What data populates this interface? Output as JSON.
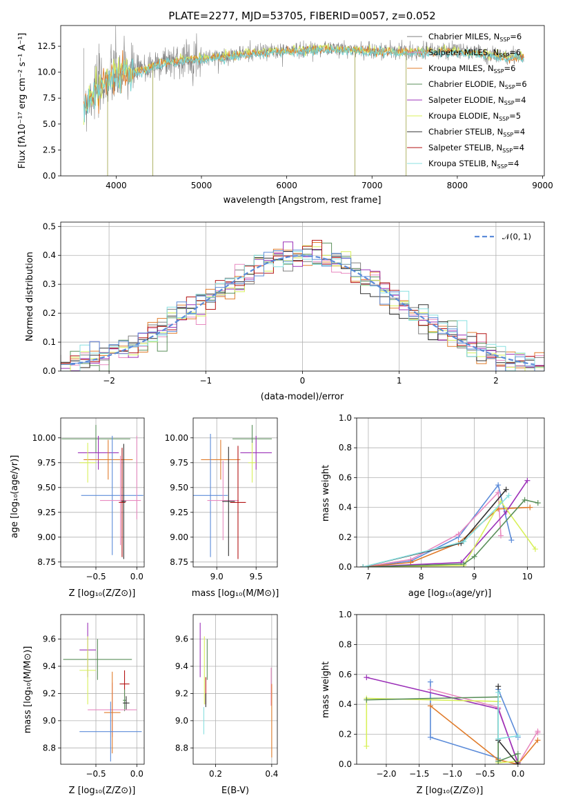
{
  "colors": {
    "chabrier_miles": "#7f7f7f",
    "salpeter_miles": "#76d2d2",
    "kroupa_miles": "#e07b2a",
    "chabrier_elodie": "#5a8f5a",
    "salpeter_elodie": "#9b30b8",
    "kroupa_elodie": "#d8f05a",
    "chabrier_stelib": "#303030",
    "salpeter_stelib": "#b31212",
    "kroupa_stelib": "#88e0e0",
    "blue": "#5b8bd9",
    "pink": "#e889c0"
  },
  "chart_data": [
    {
      "id": "spectrum",
      "type": "line",
      "title": "PLATE=2277, MJD=53705, FIBERID=0057, z=0.052",
      "xlabel": "wavelength [Angstrom, rest frame]",
      "ylabel": "Flux [fλ10⁻¹⁷ erg cm⁻² s⁻¹ A⁻¹]",
      "xlim": [
        3350,
        9020
      ],
      "ylim": [
        0,
        14.5
      ],
      "xticks": [
        "4000",
        "5000",
        "6000",
        "7000",
        "8000",
        "9000"
      ],
      "yticks": [
        "0.0",
        "2.5",
        "5.0",
        "7.5",
        "10.0",
        "12.5"
      ],
      "legend_position": "right",
      "legend": [
        {
          "name": "Chabrier MILES, N",
          "sub": "SSP",
          "val": "=6",
          "color": "#7f7f7f"
        },
        {
          "name": "Salpeter MILES, N",
          "sub": "SSP",
          "val": "=6",
          "color": "#e889c0"
        },
        {
          "name": "Kroupa MILES, N",
          "sub": "SSP",
          "val": "=6",
          "color": "#e07b2a"
        },
        {
          "name": "Chabrier ELODIE, N",
          "sub": "SSP",
          "val": "=6",
          "color": "#5a8f5a"
        },
        {
          "name": "Salpeter ELODIE, N",
          "sub": "SSP",
          "val": "=4",
          "color": "#9b30b8"
        },
        {
          "name": "Kroupa ELODIE, N",
          "sub": "SSP",
          "val": "=5",
          "color": "#d8f05a"
        },
        {
          "name": "Chabrier STELIB, N",
          "sub": "SSP",
          "val": "=4",
          "color": "#303030"
        },
        {
          "name": "Salpeter STELIB, N",
          "sub": "SSP",
          "val": "=4",
          "color": "#b31212"
        },
        {
          "name": "Kroupa STELIB, N",
          "sub": "SSP",
          "val": "=4",
          "color": "#88e0e0"
        }
      ],
      "trend": [
        [
          3600,
          6.5
        ],
        [
          3700,
          7.8
        ],
        [
          3800,
          8.6
        ],
        [
          3950,
          9.6
        ],
        [
          4100,
          10.0
        ],
        [
          4300,
          10.2
        ],
        [
          4500,
          10.9
        ],
        [
          4800,
          11.3
        ],
        [
          5200,
          11.5
        ],
        [
          5600,
          11.9
        ],
        [
          6000,
          12.1
        ],
        [
          6500,
          12.3
        ],
        [
          7000,
          12.1
        ],
        [
          7500,
          12.0
        ],
        [
          8000,
          12.1
        ],
        [
          8500,
          11.6
        ],
        [
          8800,
          11.5
        ]
      ],
      "drops": [
        [
          3900,
          0
        ],
        [
          4430,
          0
        ],
        [
          6800,
          0
        ],
        [
          7400,
          0
        ]
      ]
    },
    {
      "id": "residuals",
      "type": "bar",
      "xlabel": "(data-model)/error",
      "ylabel": "Normed distribution",
      "xlim": [
        -2.5,
        2.5
      ],
      "ylim": [
        0,
        0.515
      ],
      "xticks": [
        "−2",
        "−1",
        "0",
        "1",
        "2"
      ],
      "yticks": [
        "0.0",
        "0.1",
        "0.2",
        "0.3",
        "0.4",
        "0.5"
      ],
      "bin_width": 0.1,
      "legend": "𝒩(0, 1)",
      "legend_position": "top-right"
    },
    {
      "id": "age_vs_Z",
      "type": "scatter",
      "xlabel": "Z [log₁₀(Z/Z⊙)]",
      "ylabel": "age  [log₁₀(age/yr)]",
      "xlim": [
        -0.93,
        0.09
      ],
      "ylim": [
        8.7,
        10.2
      ],
      "xticks": [
        "−0.5",
        "0.0"
      ],
      "yticks": [
        "8.75",
        "9.00",
        "9.25",
        "9.50",
        "9.75",
        "10.00"
      ],
      "points": [
        {
          "x": -0.5,
          "y": 9.99,
          "xerr": 0.42,
          "yerr": 0.14,
          "color": "#5a8f5a"
        },
        {
          "x": -0.47,
          "y": 9.85,
          "xerr": 0.25,
          "yerr": 0.17,
          "color": "#9b30b8"
        },
        {
          "x": -0.35,
          "y": 9.78,
          "xerr": 0.3,
          "yerr": 0.2,
          "color": "#e07b2a"
        },
        {
          "x": -0.6,
          "y": 9.75,
          "xerr": 0.1,
          "yerr": 0.2,
          "color": "#d8f05a"
        },
        {
          "x": -0.3,
          "y": 9.42,
          "xerr": 0.38,
          "yerr": 0.6,
          "color": "#5b8bd9"
        },
        {
          "x": -0.2,
          "y": 9.37,
          "xerr": 0.25,
          "yerr": 0.45,
          "color": "#e889c0"
        },
        {
          "x": -0.18,
          "y": 9.35,
          "xerr": 0.04,
          "yerr": 0.55,
          "color": "#b31212"
        },
        {
          "x": -0.16,
          "y": 9.36,
          "xerr": 0.03,
          "yerr": 0.58,
          "color": "#303030"
        },
        {
          "x": 0.0,
          "y": 9.6,
          "xerr": 0.0,
          "yerr": 0.42,
          "color": "#e889c0"
        }
      ]
    },
    {
      "id": "age_vs_mass",
      "type": "scatter",
      "xlabel": "mass [log₁₀(M/M⊙)]",
      "xlim": [
        8.7,
        9.77
      ],
      "ylim": [
        8.7,
        10.2
      ],
      "xticks": [
        "9.0",
        "9.5"
      ],
      "yticks": [
        "8.75",
        "9.00",
        "9.25",
        "9.50",
        "9.75",
        "10.00"
      ],
      "points": [
        {
          "x": 9.45,
          "y": 9.99,
          "xerr": 0.25,
          "yerr": 0.14,
          "color": "#5a8f5a"
        },
        {
          "x": 9.5,
          "y": 9.85,
          "xerr": 0.2,
          "yerr": 0.17,
          "color": "#9b30b8"
        },
        {
          "x": 9.05,
          "y": 9.78,
          "xerr": 0.25,
          "yerr": 0.2,
          "color": "#e07b2a"
        },
        {
          "x": 9.45,
          "y": 9.75,
          "xerr": 0.05,
          "yerr": 0.2,
          "color": "#d8f05a"
        },
        {
          "x": 8.92,
          "y": 9.42,
          "xerr": 0.22,
          "yerr": 0.62,
          "color": "#5b8bd9"
        },
        {
          "x": 9.08,
          "y": 9.37,
          "xerr": 0.2,
          "yerr": 0.4,
          "color": "#e889c0"
        },
        {
          "x": 9.27,
          "y": 9.35,
          "xerr": 0.1,
          "yerr": 0.57,
          "color": "#b31212"
        },
        {
          "x": 9.15,
          "y": 9.36,
          "xerr": 0.08,
          "yerr": 0.55,
          "color": "#303030"
        }
      ]
    },
    {
      "id": "massweight_vs_age",
      "type": "line",
      "xlabel": "age  [log₁₀(age/yr)]",
      "ylabel": "mass weight",
      "xlim": [
        6.78,
        10.32
      ],
      "ylim": [
        0,
        1.0
      ],
      "xticks": [
        "7",
        "8",
        "9",
        "10"
      ],
      "yticks": [
        "0.0",
        "0.2",
        "0.4",
        "0.6",
        "0.8",
        "1.0"
      ],
      "series": [
        {
          "color": "#5b8bd9",
          "x": [
            6.9,
            7.8,
            8.7,
            9.45,
            9.7
          ],
          "y": [
            0.0,
            0.04,
            0.2,
            0.55,
            0.18
          ]
        },
        {
          "color": "#e889c0",
          "x": [
            6.9,
            7.8,
            8.7,
            9.45,
            9.5
          ],
          "y": [
            0.0,
            0.05,
            0.22,
            0.5,
            0.21
          ]
        },
        {
          "color": "#e07b2a",
          "x": [
            6.9,
            7.8,
            8.7,
            9.45,
            10.05
          ],
          "y": [
            0.0,
            0.03,
            0.16,
            0.39,
            0.4
          ]
        },
        {
          "color": "#9b30b8",
          "x": [
            6.9,
            8.75,
            9.6,
            10.0
          ],
          "y": [
            0.0,
            0.03,
            0.37,
            0.58
          ]
        },
        {
          "color": "#d8f05a",
          "x": [
            6.9,
            8.8,
            9.5,
            10.15
          ],
          "y": [
            0.0,
            0.01,
            0.44,
            0.12
          ]
        },
        {
          "color": "#5a8f5a",
          "x": [
            6.9,
            8.8,
            9.0,
            9.95,
            10.2
          ],
          "y": [
            0.0,
            0.02,
            0.07,
            0.45,
            0.43
          ]
        },
        {
          "color": "#303030",
          "x": [
            6.9,
            8.75,
            9.6
          ],
          "y": [
            0.0,
            0.16,
            0.52
          ]
        },
        {
          "color": "#88e0e0",
          "x": [
            6.9,
            8.8,
            9.65
          ],
          "y": [
            0.0,
            0.17,
            0.48
          ]
        }
      ]
    },
    {
      "id": "mass_vs_Z",
      "type": "scatter",
      "xlabel": "Z [log₁₀(Z/Z⊙)]",
      "ylabel": "mass [log₁₀(M/M⊙)]",
      "xlim": [
        -0.93,
        0.09
      ],
      "ylim": [
        8.68,
        9.78
      ],
      "xticks": [
        "−0.5",
        "0.0"
      ],
      "yticks": [
        "8.8",
        "9.0",
        "9.2",
        "9.4",
        "9.6"
      ],
      "points": [
        {
          "x": -0.6,
          "y": 9.52,
          "xerr": 0.1,
          "yerr": 0.2,
          "color": "#9b30b8"
        },
        {
          "x": -0.48,
          "y": 9.45,
          "xerr": 0.42,
          "yerr": 0.15,
          "color": "#5a8f5a"
        },
        {
          "x": -0.6,
          "y": 9.37,
          "xerr": 0.1,
          "yerr": 0.25,
          "color": "#d8f05a"
        },
        {
          "x": -0.15,
          "y": 9.27,
          "xerr": 0.06,
          "yerr": 0.1,
          "color": "#b31212"
        },
        {
          "x": -0.15,
          "y": 9.15,
          "xerr": 0.02,
          "yerr": 0.08,
          "color": "#5a8f5a"
        },
        {
          "x": -0.13,
          "y": 9.13,
          "xerr": 0.04,
          "yerr": 0.05,
          "color": "#303030"
        },
        {
          "x": -0.3,
          "y": 9.08,
          "xerr": 0.3,
          "yerr": 0.2,
          "color": "#e889c0"
        },
        {
          "x": -0.3,
          "y": 9.06,
          "xerr": 0.1,
          "yerr": 0.3,
          "color": "#e07b2a"
        },
        {
          "x": -0.32,
          "y": 8.92,
          "xerr": 0.38,
          "yerr": 0.22,
          "color": "#5b8bd9"
        }
      ]
    },
    {
      "id": "mass_vs_ebv",
      "type": "scatter",
      "xlabel": "E(B-V)",
      "xlim": [
        0.12,
        0.42
      ],
      "ylim": [
        8.68,
        9.78
      ],
      "xticks": [
        "0.2",
        "0.4"
      ],
      "yticks": [
        "8.8",
        "9.0",
        "9.2",
        "9.4",
        "9.6"
      ],
      "points": [
        {
          "x": 0.145,
          "y": 9.52,
          "yerr": 0.2,
          "color": "#9b30b8"
        },
        {
          "x": 0.17,
          "y": 9.45,
          "yerr": 0.15,
          "color": "#5a8f5a"
        },
        {
          "x": 0.16,
          "y": 9.37,
          "yerr": 0.25,
          "color": "#d8f05a"
        },
        {
          "x": 0.165,
          "y": 9.22,
          "yerr": 0.1,
          "color": "#b31212"
        },
        {
          "x": 0.165,
          "y": 9.15,
          "yerr": 0.05,
          "color": "#303030"
        },
        {
          "x": 0.158,
          "y": 9.0,
          "yerr": 0.1,
          "color": "#88e0e0"
        },
        {
          "x": 0.398,
          "y": 9.25,
          "yerr": 0.14,
          "color": "#e889c0"
        },
        {
          "x": 0.4,
          "y": 9.0,
          "yerr": 0.27,
          "color": "#e07b2a"
        }
      ]
    },
    {
      "id": "massweight_vs_Z",
      "type": "line",
      "xlabel": "Z [log₁₀(Z/Z⊙)]",
      "ylabel": "mass weight",
      "xlim": [
        -2.45,
        0.4
      ],
      "ylim": [
        0,
        1.0
      ],
      "xticks": [
        "−2.0",
        "−1.5",
        "−1.0",
        "−0.5",
        "0.0"
      ],
      "yticks": [
        "0.0",
        "0.2",
        "0.4",
        "0.6",
        "0.8",
        "1.0"
      ],
      "series": [
        {
          "color": "#5b8bd9",
          "x": [
            -1.33,
            -1.33,
            -0.3,
            -0.3,
            0.0
          ],
          "y": [
            0.55,
            0.18,
            0.04,
            0.5,
            0.18
          ]
        },
        {
          "color": "#e889c0",
          "x": [
            -1.33,
            -0.3,
            0.0,
            0.3,
            0.3
          ],
          "y": [
            0.5,
            0.38,
            0.0,
            0.22,
            0.21
          ]
        },
        {
          "color": "#e07b2a",
          "x": [
            -1.33,
            -0.3,
            0.0,
            0.3
          ],
          "y": [
            0.39,
            0.03,
            0.0,
            0.16
          ]
        },
        {
          "color": "#9b30b8",
          "x": [
            -2.3,
            -0.3,
            0.0
          ],
          "y": [
            0.58,
            0.37,
            0.01
          ]
        },
        {
          "color": "#d8f05a",
          "x": [
            -2.3,
            -2.3,
            -0.3,
            -0.3,
            0.0
          ],
          "y": [
            0.12,
            0.44,
            0.42,
            0.01,
            0.02
          ]
        },
        {
          "color": "#5a8f5a",
          "x": [
            -2.3,
            -0.3,
            -0.3,
            0.0,
            0.0
          ],
          "y": [
            0.43,
            0.45,
            0.02,
            0.07,
            0.0
          ]
        },
        {
          "color": "#303030",
          "x": [
            -0.3,
            -0.3,
            0.0
          ],
          "y": [
            0.52,
            0.16,
            0.0
          ]
        },
        {
          "color": "#88e0e0",
          "x": [
            -0.3,
            -0.3,
            0.0
          ],
          "y": [
            0.48,
            0.17,
            0.19
          ]
        }
      ]
    }
  ]
}
